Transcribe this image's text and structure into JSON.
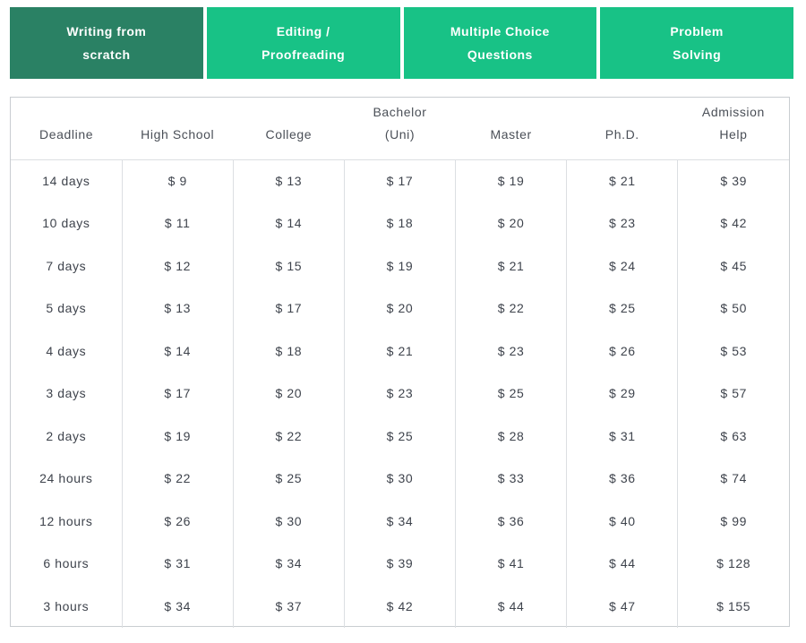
{
  "tabs": [
    {
      "line1": "Writing from",
      "line2": "scratch",
      "active": true
    },
    {
      "line1": "Editing /",
      "line2": "Proofreading",
      "active": false
    },
    {
      "line1": "Multiple Choice",
      "line2": "Questions",
      "active": false
    },
    {
      "line1": "Problem",
      "line2": "Solving",
      "active": false
    }
  ],
  "colors": {
    "tab_active_bg": "#2a8164",
    "tab_inactive_bg": "#18c286",
    "tab_text": "#ffffff",
    "table_border": "#c9cdd1",
    "divider": "#dcdfe2",
    "header_text": "#4a4f57",
    "cell_text": "#3e434c"
  },
  "table": {
    "currency_prefix": "$ ",
    "headers": [
      "Deadline",
      "High School",
      "College",
      "Bachelor\n(Uni)",
      "Master",
      "Ph.D.",
      "Admission\nHelp"
    ],
    "rows": [
      {
        "deadline": "14 days",
        "prices": [
          9,
          13,
          17,
          19,
          21,
          39
        ]
      },
      {
        "deadline": "10 days",
        "prices": [
          11,
          14,
          18,
          20,
          23,
          42
        ]
      },
      {
        "deadline": "7 days",
        "prices": [
          12,
          15,
          19,
          21,
          24,
          45
        ]
      },
      {
        "deadline": "5 days",
        "prices": [
          13,
          17,
          20,
          22,
          25,
          50
        ]
      },
      {
        "deadline": "4 days",
        "prices": [
          14,
          18,
          21,
          23,
          26,
          53
        ]
      },
      {
        "deadline": "3 days",
        "prices": [
          17,
          20,
          23,
          25,
          29,
          57
        ]
      },
      {
        "deadline": "2 days",
        "prices": [
          19,
          22,
          25,
          28,
          31,
          63
        ]
      },
      {
        "deadline": "24 hours",
        "prices": [
          22,
          25,
          30,
          33,
          36,
          74
        ]
      },
      {
        "deadline": "12 hours",
        "prices": [
          26,
          30,
          34,
          36,
          40,
          99
        ]
      },
      {
        "deadline": "6 hours",
        "prices": [
          31,
          34,
          39,
          41,
          44,
          128
        ]
      },
      {
        "deadline": "3 hours",
        "prices": [
          34,
          37,
          42,
          44,
          47,
          155
        ]
      }
    ]
  }
}
